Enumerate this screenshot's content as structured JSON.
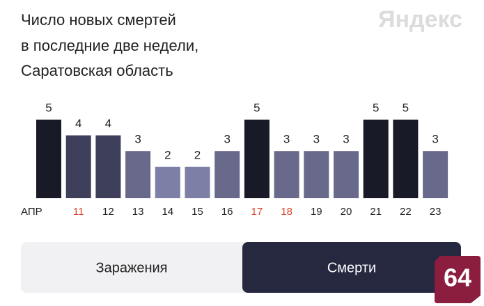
{
  "chart_data": {
    "type": "bar",
    "title": [
      "Число новых смертей",
      "в последние две недели,",
      "Саратовская область"
    ],
    "logo": "Яндекс",
    "categories": [
      "АПР",
      "11",
      "12",
      "13",
      "14",
      "15",
      "16",
      "17",
      "18",
      "19",
      "20",
      "21",
      "22",
      "23"
    ],
    "category_colors": [
      "#222",
      "#d9432b",
      "#222",
      "#222",
      "#222",
      "#222",
      "#222",
      "#d9432b",
      "#d9432b",
      "#222",
      "#222",
      "#222",
      "#222",
      "#222"
    ],
    "values": [
      5,
      4,
      4,
      3,
      2,
      2,
      3,
      5,
      3,
      3,
      3,
      5,
      5,
      3
    ],
    "colors": [
      "#181a27",
      "#3e3f5b",
      "#3e3f5b",
      "#696a8b",
      "#7d7fa6",
      "#7d7fa6",
      "#696a8b",
      "#181a27",
      "#696a8b",
      "#696a8b",
      "#696a8b",
      "#181a27",
      "#181a27",
      "#696a8b"
    ],
    "ylim": [
      0,
      5
    ]
  },
  "tabs": [
    "Заражения",
    "Смерти"
  ],
  "badge": "64"
}
